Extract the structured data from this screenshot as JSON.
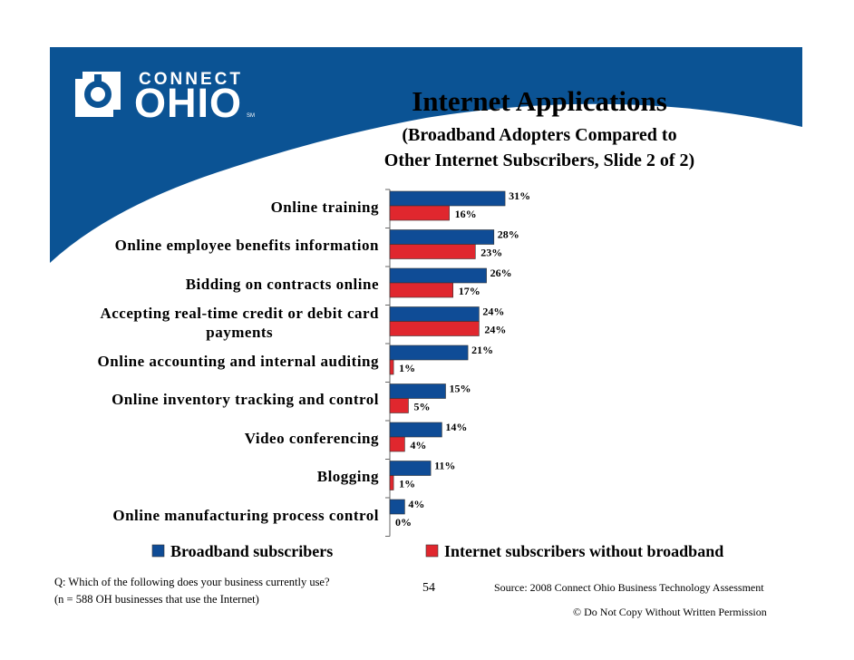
{
  "logo": {
    "line1": "CONNECT",
    "line2": "OHIO",
    "mark": "SM"
  },
  "title": "Internet Applications",
  "subtitle_line1": "(Broadband Adopters Compared to",
  "subtitle_line2": "Other Internet Subscribers, Slide 2 of 2)",
  "colors": {
    "brand_blue": "#0b5394",
    "broadband": "#0f4c96",
    "non_broadband": "#e0272e"
  },
  "chart_data": {
    "type": "bar",
    "orientation": "horizontal",
    "categories": [
      "Online training",
      "Online employee benefits information",
      "Bidding on contracts online",
      "Accepting real-time credit or debit card payments",
      "Online accounting and internal auditing",
      "Online inventory tracking and control",
      "Video conferencing",
      "Blogging",
      "Online manufacturing process control"
    ],
    "series": [
      {
        "name": "Broadband subscribers",
        "values": [
          31,
          28,
          26,
          24,
          21,
          15,
          14,
          11,
          4
        ]
      },
      {
        "name": "Internet subscribers without broadband",
        "values": [
          16,
          23,
          17,
          24,
          1,
          5,
          4,
          1,
          0
        ]
      }
    ],
    "value_labels": [
      [
        "31%",
        "28%",
        "26%",
        "24%",
        "21%",
        "15%",
        "14%",
        "11%",
        "4%"
      ],
      [
        "16%",
        "23%",
        "17%",
        "24%",
        "1%",
        "5%",
        "4%",
        "1%",
        "0%"
      ]
    ],
    "legend_position": "bottom",
    "grid": false
  },
  "footer": {
    "question_line1": "Q: Which of the following does your business currently use?",
    "question_line2": "(n = 588 OH businesses that use the Internet)",
    "page_number": "54",
    "source": "Source: 2008 Connect Ohio Business Technology Assessment",
    "copyright": "© Do Not Copy Without Written Permission"
  }
}
